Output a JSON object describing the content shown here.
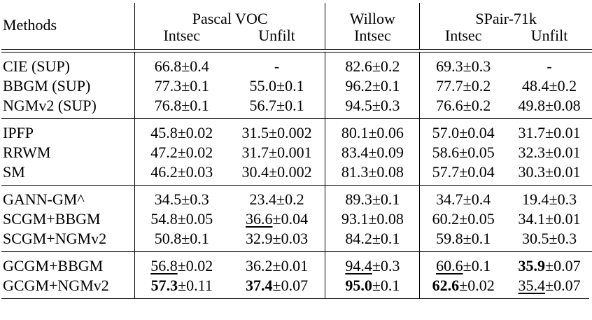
{
  "header": {
    "methods": "Methods",
    "groups": [
      "Pascal VOC",
      "Willow",
      "SPair-71k"
    ],
    "subcols": [
      "Intsec",
      "Unfilt",
      "Intsec",
      "Intsec",
      "Unfilt"
    ]
  },
  "sections": [
    [
      {
        "method": "CIE (SUP)",
        "cells": [
          {
            "v": "66.8",
            "e": "±0.4"
          },
          {
            "v": "-",
            "e": ""
          },
          {
            "v": "82.6",
            "e": "±0.2"
          },
          {
            "v": "69.3",
            "e": "±0.3"
          },
          {
            "v": "-",
            "e": ""
          }
        ]
      },
      {
        "method": "BBGM (SUP)",
        "cells": [
          {
            "v": "77.3",
            "e": "±0.1"
          },
          {
            "v": "55.0",
            "e": "±0.1"
          },
          {
            "v": "96.2",
            "e": "±0.1"
          },
          {
            "v": "77.7",
            "e": "±0.2"
          },
          {
            "v": "48.4",
            "e": "±0.2"
          }
        ]
      },
      {
        "method": "NGMv2 (SUP)",
        "cells": [
          {
            "v": "76.8",
            "e": "±0.1"
          },
          {
            "v": "56.7",
            "e": "±0.1"
          },
          {
            "v": "94.5",
            "e": "±0.3"
          },
          {
            "v": "76.6",
            "e": "±0.2"
          },
          {
            "v": "49.8",
            "e": "±0.08"
          }
        ]
      }
    ],
    [
      {
        "method": "IPFP",
        "cells": [
          {
            "v": "45.8",
            "e": "±0.02"
          },
          {
            "v": "31.5",
            "e": "±0.002"
          },
          {
            "v": "80.1",
            "e": "±0.06"
          },
          {
            "v": "57.0",
            "e": "±0.04"
          },
          {
            "v": "31.7",
            "e": "±0.01"
          }
        ]
      },
      {
        "method": "RRWM",
        "cells": [
          {
            "v": "47.2",
            "e": "±0.02"
          },
          {
            "v": "31.7",
            "e": "±0.001"
          },
          {
            "v": "83.4",
            "e": "±0.09"
          },
          {
            "v": "58.6",
            "e": "±0.05"
          },
          {
            "v": "32.3",
            "e": "±0.01"
          }
        ]
      },
      {
        "method": "SM",
        "cells": [
          {
            "v": "46.2",
            "e": "±0.03"
          },
          {
            "v": "30.4",
            "e": "±0.002"
          },
          {
            "v": "81.3",
            "e": "±0.08"
          },
          {
            "v": "57.7",
            "e": "±0.04"
          },
          {
            "v": "30.3",
            "e": "±0.01"
          }
        ]
      }
    ],
    [
      {
        "method": "GANN-GM^",
        "cells": [
          {
            "v": "34.5",
            "e": "±0.3"
          },
          {
            "v": "23.4",
            "e": "±0.2"
          },
          {
            "v": "89.3",
            "e": "±0.1"
          },
          {
            "v": "34.7",
            "e": "±0.4"
          },
          {
            "v": "19.4",
            "e": "±0.3"
          }
        ]
      },
      {
        "method": "SCGM+BBGM",
        "cells": [
          {
            "v": "54.8",
            "e": "±0.05"
          },
          {
            "v": "36.6",
            "e": "±0.04",
            "style": "u"
          },
          {
            "v": "93.1",
            "e": "±0.08"
          },
          {
            "v": "60.2",
            "e": "±0.05"
          },
          {
            "v": "34.1",
            "e": "±0.01"
          }
        ]
      },
      {
        "method": "SCGM+NGMv2",
        "cells": [
          {
            "v": "50.8",
            "e": "±0.1"
          },
          {
            "v": "32.9",
            "e": "±0.03"
          },
          {
            "v": "84.2",
            "e": "±0.1"
          },
          {
            "v": "59.8",
            "e": "±0.1"
          },
          {
            "v": "30.5",
            "e": "±0.3"
          }
        ]
      }
    ],
    [
      {
        "method": "GCGM+BBGM",
        "cells": [
          {
            "v": "56.8",
            "e": "±0.02",
            "style": "u"
          },
          {
            "v": "36.2",
            "e": "±0.01"
          },
          {
            "v": "94.4",
            "e": "±0.3",
            "style": "u"
          },
          {
            "v": "60.6",
            "e": "±0.1",
            "style": "u"
          },
          {
            "v": "35.9",
            "e": "±0.07",
            "style": "b"
          }
        ]
      },
      {
        "method": "GCGM+NGMv2",
        "cells": [
          {
            "v": "57.3",
            "e": "±0.11",
            "style": "b"
          },
          {
            "v": "37.4",
            "e": "±0.07",
            "style": "b"
          },
          {
            "v": "95.0",
            "e": "±0.1",
            "style": "b"
          },
          {
            "v": "62.6",
            "e": "±0.02",
            "style": "b"
          },
          {
            "v": "35.4",
            "e": "±0.07",
            "style": "u"
          }
        ]
      }
    ]
  ]
}
